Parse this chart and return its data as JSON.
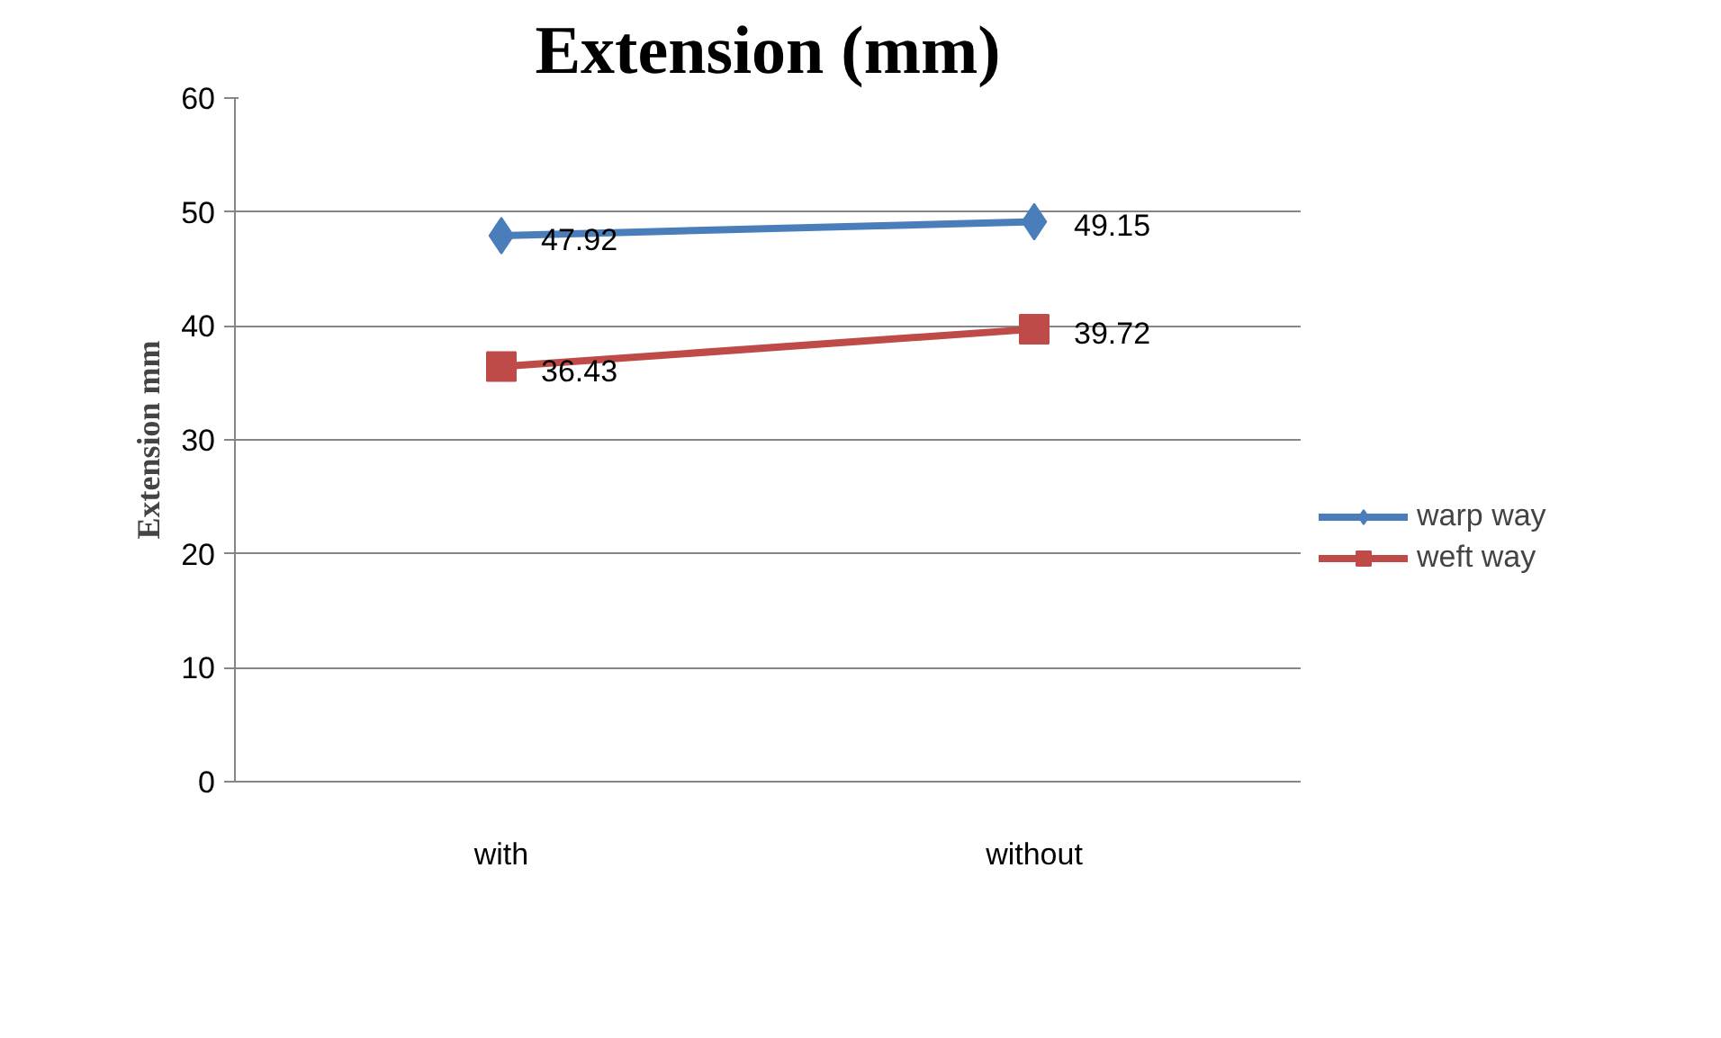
{
  "chart_data": {
    "type": "line",
    "title": "Extension (mm)",
    "ylabel": "Extension mm",
    "categories": [
      "with",
      "without"
    ],
    "series": [
      {
        "name": "warp way",
        "color": "#4a7ebb",
        "marker": "diamond",
        "values": [
          47.92,
          49.15
        ]
      },
      {
        "name": "weft way",
        "color": "#be4b48",
        "marker": "square",
        "values": [
          36.43,
          39.72
        ]
      }
    ],
    "ylim": [
      0,
      60
    ],
    "yticks": [
      0,
      10,
      20,
      30,
      40,
      50,
      60
    ],
    "grid": "y",
    "legend": "right",
    "data_labels": true,
    "line_style": "solid"
  }
}
